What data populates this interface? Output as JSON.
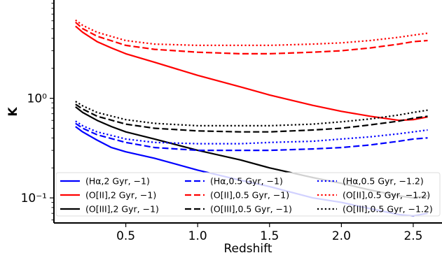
{
  "chart_data": {
    "type": "line",
    "xlabel": "Redshift",
    "ylabel": "K",
    "xlim": [
      0.0,
      2.7
    ],
    "ylim": [
      0.056,
      9.7
    ],
    "yscale": "log",
    "x_ticks": [
      0.5,
      1.0,
      1.5,
      2.0,
      2.5
    ],
    "x_tick_labels": [
      "0.5",
      "1.0",
      "1.5",
      "2.0",
      "2.5"
    ],
    "y_ticks": [
      0.1,
      1.0
    ],
    "y_tick_labels": [
      "10⁻¹",
      "10⁰"
    ],
    "grid": false,
    "legend_position": "lower-center",
    "legend_columns": 3,
    "series": [
      {
        "name": "(Hα,2 Gyr, −1)",
        "color": "#0000ff",
        "style": "solid",
        "x": [
          0.15,
          0.2,
          0.3,
          0.4,
          0.5,
          0.7,
          1.0,
          1.3,
          1.5,
          1.8,
          2.0,
          2.2,
          2.4,
          2.5,
          2.6
        ],
        "y": [
          0.52,
          0.46,
          0.38,
          0.32,
          0.29,
          0.25,
          0.19,
          0.15,
          0.13,
          0.1,
          0.09,
          0.078,
          0.068,
          0.066,
          0.07
        ]
      },
      {
        "name": "(O[II],2 Gyr, −1)",
        "color": "#ff0000",
        "style": "solid",
        "x": [
          0.15,
          0.2,
          0.3,
          0.4,
          0.5,
          0.7,
          1.0,
          1.3,
          1.5,
          1.8,
          2.0,
          2.2,
          2.4,
          2.5,
          2.6
        ],
        "y": [
          5.3,
          4.6,
          3.7,
          3.2,
          2.8,
          2.3,
          1.7,
          1.3,
          1.08,
          0.85,
          0.74,
          0.66,
          0.6,
          0.61,
          0.65
        ]
      },
      {
        "name": "(O[III],2 Gyr, −1)",
        "color": "#000000",
        "style": "solid",
        "x": [
          0.15,
          0.2,
          0.3,
          0.4,
          0.5,
          0.7,
          1.0,
          1.3,
          1.5,
          1.8,
          2.0,
          2.2,
          2.4,
          2.5,
          2.6
        ],
        "y": [
          0.82,
          0.72,
          0.6,
          0.52,
          0.46,
          0.39,
          0.3,
          0.24,
          0.2,
          0.16,
          0.14,
          0.12,
          0.105,
          0.1,
          0.105
        ]
      },
      {
        "name": "(Hα,0.5 Gyr, −1)",
        "color": "#0000ff",
        "style": "dashed",
        "x": [
          0.15,
          0.2,
          0.3,
          0.5,
          0.7,
          1.0,
          1.3,
          1.5,
          1.8,
          2.0,
          2.2,
          2.4,
          2.5,
          2.6
        ],
        "y": [
          0.56,
          0.5,
          0.43,
          0.36,
          0.32,
          0.3,
          0.3,
          0.3,
          0.31,
          0.32,
          0.34,
          0.37,
          0.39,
          0.4
        ]
      },
      {
        "name": "(O[II],0.5 Gyr, −1)",
        "color": "#ff0000",
        "style": "dashed",
        "x": [
          0.15,
          0.2,
          0.3,
          0.5,
          0.7,
          1.0,
          1.3,
          1.5,
          1.8,
          2.0,
          2.2,
          2.4,
          2.5,
          2.6
        ],
        "y": [
          5.8,
          5.0,
          4.2,
          3.4,
          3.1,
          2.9,
          2.8,
          2.8,
          2.9,
          3.0,
          3.2,
          3.5,
          3.7,
          3.8
        ]
      },
      {
        "name": "(O[III],0.5 Gyr, −1)",
        "color": "#000000",
        "style": "dashed",
        "x": [
          0.15,
          0.2,
          0.3,
          0.5,
          0.7,
          1.0,
          1.3,
          1.5,
          1.8,
          2.0,
          2.2,
          2.4,
          2.5,
          2.6
        ],
        "y": [
          0.87,
          0.78,
          0.66,
          0.55,
          0.5,
          0.47,
          0.46,
          0.46,
          0.48,
          0.5,
          0.54,
          0.59,
          0.63,
          0.66
        ]
      },
      {
        "name": "(Hα,0.5 Gyr, −1.2)",
        "color": "#0000ff",
        "style": "dotted",
        "x": [
          0.15,
          0.2,
          0.3,
          0.5,
          0.7,
          1.0,
          1.3,
          1.5,
          1.8,
          2.0,
          2.2,
          2.4,
          2.5,
          2.6
        ],
        "y": [
          0.59,
          0.53,
          0.46,
          0.39,
          0.36,
          0.35,
          0.35,
          0.36,
          0.37,
          0.39,
          0.41,
          0.44,
          0.46,
          0.48
        ]
      },
      {
        "name": "(O[II],0.5 Gyr, −1.2)",
        "color": "#ff0000",
        "style": "dotted",
        "x": [
          0.15,
          0.2,
          0.3,
          0.5,
          0.7,
          1.0,
          1.3,
          1.5,
          1.8,
          2.0,
          2.2,
          2.4,
          2.5,
          2.6
        ],
        "y": [
          6.1,
          5.4,
          4.6,
          3.8,
          3.5,
          3.4,
          3.4,
          3.4,
          3.5,
          3.6,
          3.8,
          4.1,
          4.3,
          4.5
        ]
      },
      {
        "name": "(O[III],0.5 Gyr, −1.2)",
        "color": "#000000",
        "style": "dotted",
        "x": [
          0.15,
          0.2,
          0.3,
          0.5,
          0.7,
          1.0,
          1.3,
          1.5,
          1.8,
          2.0,
          2.2,
          2.4,
          2.5,
          2.6
        ],
        "y": [
          0.93,
          0.84,
          0.72,
          0.61,
          0.56,
          0.53,
          0.53,
          0.53,
          0.55,
          0.58,
          0.62,
          0.68,
          0.72,
          0.76
        ]
      }
    ]
  }
}
